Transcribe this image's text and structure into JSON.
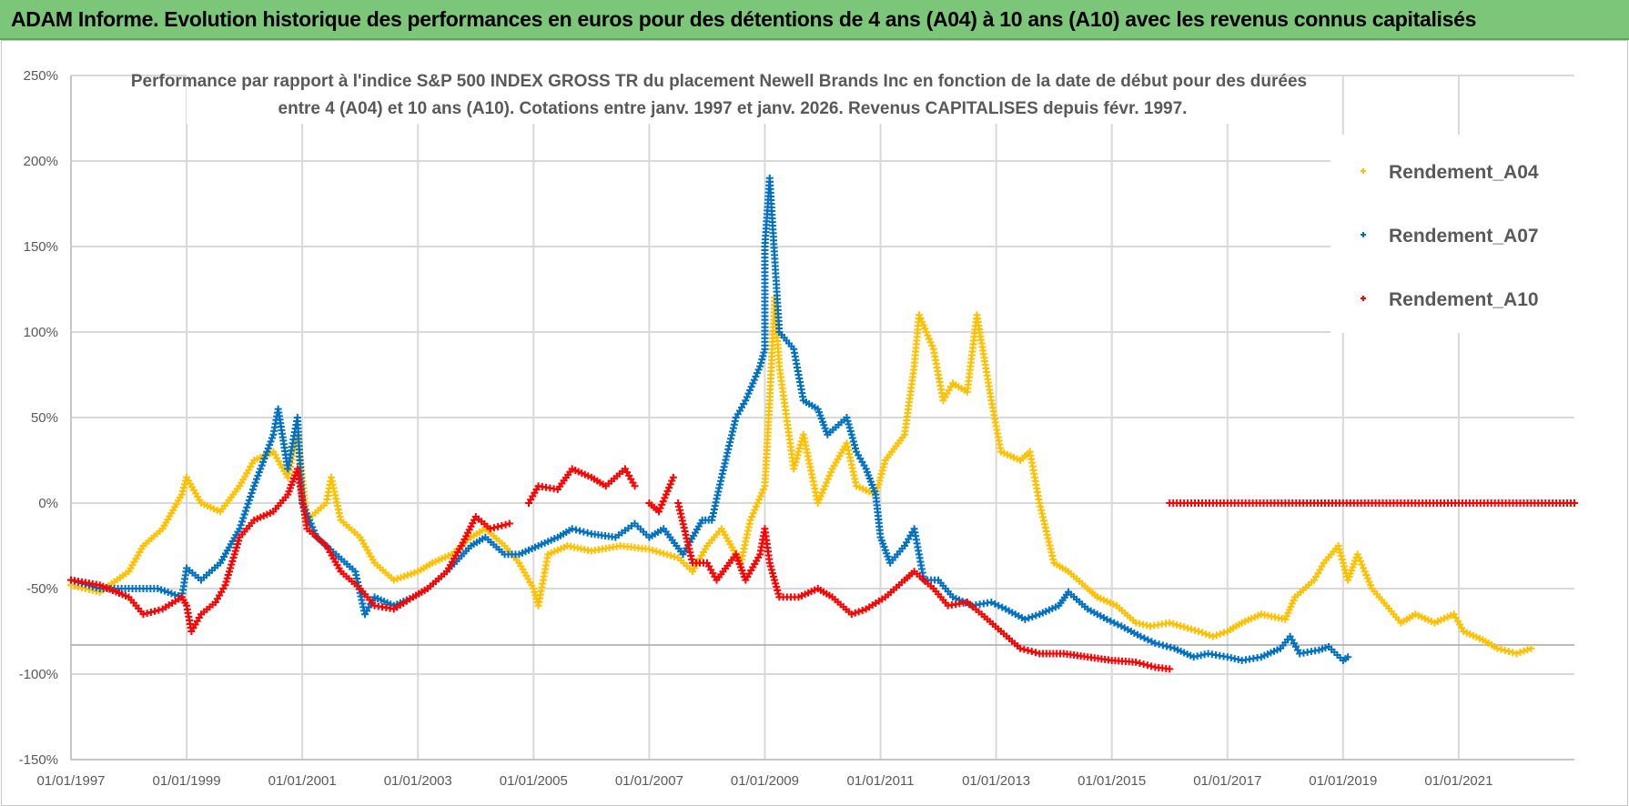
{
  "header": {
    "title": "ADAM Informe. Evolution historique des performances en euros pour des détentions de 4 ans (A04) à 10 ans (A10) avec les revenus connus capitalisés"
  },
  "chart_data": {
    "type": "scatter",
    "title_lines": [
      "Performance par rapport à l'indice S&P 500 INDEX GROSS TR  du placement Newell Brands Inc en fonction de la date de début pour des durées",
      "entre 4 (A04) et 10 ans (A10).  Cotations entre janv. 1997 et janv. 2026. Revenus CAPITALISES depuis févr. 1997."
    ],
    "xlabel": "",
    "ylabel": "",
    "xlim": [
      "1997-01",
      "2023-01"
    ],
    "ylim": [
      -150,
      250
    ],
    "y_ticks": [
      "250%",
      "200%",
      "150%",
      "100%",
      "50%",
      "0%",
      "-50%",
      "-100%",
      "-150%"
    ],
    "y_tick_values": [
      250,
      200,
      150,
      100,
      50,
      0,
      -50,
      -100,
      -150
    ],
    "x_ticks": [
      "01/01/1997",
      "01/01/1999",
      "01/01/2001",
      "01/01/2003",
      "01/01/2005",
      "01/01/2007",
      "01/01/2009",
      "01/01/2011",
      "01/01/2013",
      "01/01/2015",
      "01/01/2017",
      "01/01/2019",
      "01/01/2021"
    ],
    "x_tick_values": [
      "1997-01",
      "1999-01",
      "2001-01",
      "2003-01",
      "2005-01",
      "2007-01",
      "2009-01",
      "2011-01",
      "2013-01",
      "2015-01",
      "2017-01",
      "2019-01",
      "2021-01"
    ],
    "grid": true,
    "reference_hline": -83,
    "legend_position": "right",
    "marker": "plus",
    "series": [
      {
        "name": "Rendement_A04",
        "color": "#ffc000",
        "points": [
          [
            "1997-01",
            -48
          ],
          [
            "1997-07",
            -52
          ],
          [
            "1998-01",
            -40
          ],
          [
            "1998-04",
            -25
          ],
          [
            "1998-08",
            -15
          ],
          [
            "1998-12",
            5
          ],
          [
            "1999-01",
            15
          ],
          [
            "1999-04",
            0
          ],
          [
            "1999-08",
            -5
          ],
          [
            "1999-12",
            10
          ],
          [
            "2000-03",
            25
          ],
          [
            "2000-07",
            30
          ],
          [
            "2000-10",
            15
          ],
          [
            "2000-12",
            40
          ],
          [
            "2001-02",
            -10
          ],
          [
            "2001-06",
            0
          ],
          [
            "2001-07",
            15
          ],
          [
            "2001-09",
            -10
          ],
          [
            "2002-01",
            -20
          ],
          [
            "2002-04",
            -35
          ],
          [
            "2002-08",
            -45
          ],
          [
            "2003-01",
            -40
          ],
          [
            "2003-04",
            -35
          ],
          [
            "2003-08",
            -30
          ],
          [
            "2003-12",
            -20
          ],
          [
            "2004-03",
            -15
          ],
          [
            "2004-07",
            -25
          ],
          [
            "2004-10",
            -35
          ],
          [
            "2005-01",
            -50
          ],
          [
            "2005-02",
            -60
          ],
          [
            "2005-04",
            -30
          ],
          [
            "2005-08",
            -25
          ],
          [
            "2006-01",
            -28
          ],
          [
            "2006-07",
            -25
          ],
          [
            "2007-01",
            -27
          ],
          [
            "2007-07",
            -32
          ],
          [
            "2007-10",
            -40
          ],
          [
            "2008-01",
            -25
          ],
          [
            "2008-04",
            -15
          ],
          [
            "2008-08",
            -35
          ],
          [
            "2008-10",
            -10
          ],
          [
            "2009-01",
            10
          ],
          [
            "2009-02",
            60
          ],
          [
            "2009-03",
            120
          ],
          [
            "2009-04",
            80
          ],
          [
            "2009-07",
            20
          ],
          [
            "2009-09",
            40
          ],
          [
            "2009-12",
            0
          ],
          [
            "2010-03",
            20
          ],
          [
            "2010-06",
            35
          ],
          [
            "2010-08",
            10
          ],
          [
            "2010-12",
            5
          ],
          [
            "2011-02",
            25
          ],
          [
            "2011-06",
            40
          ],
          [
            "2011-08",
            80
          ],
          [
            "2011-09",
            110
          ],
          [
            "2011-12",
            90
          ],
          [
            "2012-02",
            60
          ],
          [
            "2012-04",
            70
          ],
          [
            "2012-07",
            65
          ],
          [
            "2012-09",
            110
          ],
          [
            "2012-12",
            60
          ],
          [
            "2013-02",
            30
          ],
          [
            "2013-06",
            25
          ],
          [
            "2013-08",
            30
          ],
          [
            "2013-10",
            0
          ],
          [
            "2014-01",
            -35
          ],
          [
            "2014-04",
            -40
          ],
          [
            "2014-08",
            -50
          ],
          [
            "2014-10",
            -55
          ],
          [
            "2015-02",
            -60
          ],
          [
            "2015-06",
            -70
          ],
          [
            "2015-09",
            -72
          ],
          [
            "2016-01",
            -70
          ],
          [
            "2016-07",
            -75
          ],
          [
            "2016-10",
            -78
          ],
          [
            "2017-01",
            -75
          ],
          [
            "2017-04",
            -70
          ],
          [
            "2017-08",
            -65
          ],
          [
            "2018-01",
            -68
          ],
          [
            "2018-03",
            -55
          ],
          [
            "2018-07",
            -45
          ],
          [
            "2018-09",
            -35
          ],
          [
            "2018-12",
            -25
          ],
          [
            "2019-02",
            -45
          ],
          [
            "2019-04",
            -30
          ],
          [
            "2019-07",
            -50
          ],
          [
            "2019-10",
            -60
          ],
          [
            "2020-01",
            -70
          ],
          [
            "2020-04",
            -65
          ],
          [
            "2020-08",
            -70
          ],
          [
            "2020-12",
            -65
          ],
          [
            "2021-02",
            -75
          ],
          [
            "2021-06",
            -80
          ],
          [
            "2021-09",
            -85
          ],
          [
            "2022-01",
            -88
          ],
          [
            "2022-04",
            -85
          ]
        ]
      },
      {
        "name": "Rendement_A07",
        "color": "#0070c0",
        "points": [
          [
            "1997-01",
            -45
          ],
          [
            "1997-07",
            -50
          ],
          [
            "1998-01",
            -50
          ],
          [
            "1998-07",
            -50
          ],
          [
            "1998-12",
            -55
          ],
          [
            "1999-01",
            -38
          ],
          [
            "1999-04",
            -45
          ],
          [
            "1999-08",
            -35
          ],
          [
            "1999-12",
            -15
          ],
          [
            "2000-03",
            10
          ],
          [
            "2000-07",
            40
          ],
          [
            "2000-08",
            55
          ],
          [
            "2000-10",
            20
          ],
          [
            "2000-12",
            50
          ],
          [
            "2001-01",
            0
          ],
          [
            "2001-04",
            -20
          ],
          [
            "2001-08",
            -30
          ],
          [
            "2001-12",
            -40
          ],
          [
            "2002-02",
            -65
          ],
          [
            "2002-04",
            -55
          ],
          [
            "2002-08",
            -60
          ],
          [
            "2002-12",
            -55
          ],
          [
            "2003-03",
            -50
          ],
          [
            "2003-07",
            -40
          ],
          [
            "2003-12",
            -25
          ],
          [
            "2004-03",
            -20
          ],
          [
            "2004-07",
            -30
          ],
          [
            "2004-10",
            -30
          ],
          [
            "2005-02",
            -25
          ],
          [
            "2005-06",
            -20
          ],
          [
            "2005-09",
            -15
          ],
          [
            "2006-01",
            -18
          ],
          [
            "2006-06",
            -20
          ],
          [
            "2006-10",
            -12
          ],
          [
            "2007-01",
            -20
          ],
          [
            "2007-04",
            -15
          ],
          [
            "2007-08",
            -30
          ],
          [
            "2007-12",
            -10
          ],
          [
            "2008-02",
            -10
          ],
          [
            "2008-04",
            15
          ],
          [
            "2008-07",
            50
          ],
          [
            "2008-09",
            60
          ],
          [
            "2008-12",
            80
          ],
          [
            "2009-01",
            90
          ],
          [
            "2009-01",
            150
          ],
          [
            "2009-02",
            190
          ],
          [
            "2009-03",
            145
          ],
          [
            "2009-04",
            100
          ],
          [
            "2009-07",
            90
          ],
          [
            "2009-09",
            60
          ],
          [
            "2009-12",
            55
          ],
          [
            "2010-02",
            40
          ],
          [
            "2010-06",
            50
          ],
          [
            "2010-08",
            30
          ],
          [
            "2010-10",
            20
          ],
          [
            "2010-12",
            5
          ],
          [
            "2011-01",
            -20
          ],
          [
            "2011-03",
            -35
          ],
          [
            "2011-06",
            -25
          ],
          [
            "2011-08",
            -15
          ],
          [
            "2011-10",
            -45
          ],
          [
            "2012-01",
            -45
          ],
          [
            "2012-04",
            -55
          ],
          [
            "2012-08",
            -60
          ],
          [
            "2012-12",
            -58
          ],
          [
            "2013-03",
            -62
          ],
          [
            "2013-07",
            -68
          ],
          [
            "2013-10",
            -65
          ],
          [
            "2014-02",
            -60
          ],
          [
            "2014-04",
            -52
          ],
          [
            "2014-08",
            -62
          ],
          [
            "2014-12",
            -68
          ],
          [
            "2015-03",
            -72
          ],
          [
            "2015-07",
            -78
          ],
          [
            "2015-10",
            -82
          ],
          [
            "2016-02",
            -85
          ],
          [
            "2016-06",
            -90
          ],
          [
            "2016-09",
            -88
          ],
          [
            "2017-01",
            -90
          ],
          [
            "2017-04",
            -92
          ],
          [
            "2017-08",
            -90
          ],
          [
            "2017-12",
            -85
          ],
          [
            "2018-02",
            -78
          ],
          [
            "2018-04",
            -88
          ],
          [
            "2018-08",
            -86
          ],
          [
            "2018-10",
            -84
          ],
          [
            "2019-01",
            -92
          ],
          [
            "2019-02",
            -90
          ]
        ]
      },
      {
        "name": "Rendement_A10",
        "color": "#ff0000",
        "points": [
          [
            "1997-01",
            -45
          ],
          [
            "1997-07",
            -48
          ],
          [
            "1998-01",
            -55
          ],
          [
            "1998-04",
            -65
          ],
          [
            "1998-08",
            -62
          ],
          [
            "1998-12",
            -55
          ],
          [
            "1999-01",
            -60
          ],
          [
            "1999-02",
            -75
          ],
          [
            "1999-04",
            -65
          ],
          [
            "1999-07",
            -58
          ],
          [
            "1999-09",
            -48
          ],
          [
            "1999-12",
            -20
          ],
          [
            "2000-03",
            -10
          ],
          [
            "2000-07",
            -5
          ],
          [
            "2000-10",
            5
          ],
          [
            "2000-12",
            20
          ],
          [
            "2001-02",
            -15
          ],
          [
            "2001-06",
            -25
          ],
          [
            "2001-09",
            -40
          ],
          [
            "2002-01",
            -50
          ],
          [
            "2002-04",
            -60
          ],
          [
            "2002-08",
            -62
          ],
          [
            "2002-12",
            -55
          ],
          [
            "2003-03",
            -50
          ],
          [
            "2003-07",
            -40
          ],
          [
            "2003-10",
            -25
          ],
          [
            "2004-01",
            -8
          ],
          [
            "2004-04",
            -15
          ],
          [
            "2004-08",
            -12
          ],
          [
            "2004-12",
            0
          ],
          [
            "2005-02",
            10
          ],
          [
            "2005-06",
            8
          ],
          [
            "2005-09",
            20
          ],
          [
            "2006-01",
            15
          ],
          [
            "2006-04",
            10
          ],
          [
            "2006-08",
            20
          ],
          [
            "2006-10",
            10
          ],
          [
            "2007-01",
            0
          ],
          [
            "2007-03",
            -5
          ],
          [
            "2007-06",
            15
          ],
          [
            "2007-07",
            0
          ],
          [
            "2007-10",
            -35
          ],
          [
            "2008-01",
            -35
          ],
          [
            "2008-03",
            -45
          ],
          [
            "2008-07",
            -30
          ],
          [
            "2008-09",
            -45
          ],
          [
            "2008-12",
            -30
          ],
          [
            "2009-01",
            -15
          ],
          [
            "2009-02",
            -35
          ],
          [
            "2009-04",
            -55
          ],
          [
            "2009-08",
            -55
          ],
          [
            "2009-12",
            -50
          ],
          [
            "2010-03",
            -55
          ],
          [
            "2010-07",
            -65
          ],
          [
            "2010-10",
            -62
          ],
          [
            "2011-02",
            -55
          ],
          [
            "2011-06",
            -45
          ],
          [
            "2011-08",
            -40
          ],
          [
            "2011-12",
            -50
          ],
          [
            "2012-03",
            -60
          ],
          [
            "2012-07",
            -58
          ],
          [
            "2012-10",
            -65
          ],
          [
            "2013-02",
            -75
          ],
          [
            "2013-06",
            -85
          ],
          [
            "2013-10",
            -88
          ],
          [
            "2014-03",
            -88
          ],
          [
            "2014-08",
            -90
          ],
          [
            "2015-01",
            -92
          ],
          [
            "2015-06",
            -93
          ],
          [
            "2015-10",
            -96
          ],
          [
            "2016-01",
            -97
          ],
          [
            "2016-01",
            0
          ],
          [
            "2017-01",
            0
          ],
          [
            "2018-01",
            0
          ],
          [
            "2019-01",
            0
          ],
          [
            "2020-01",
            0
          ],
          [
            "2021-01",
            0
          ],
          [
            "2022-01",
            0
          ],
          [
            "2023-01",
            0
          ]
        ]
      }
    ]
  }
}
